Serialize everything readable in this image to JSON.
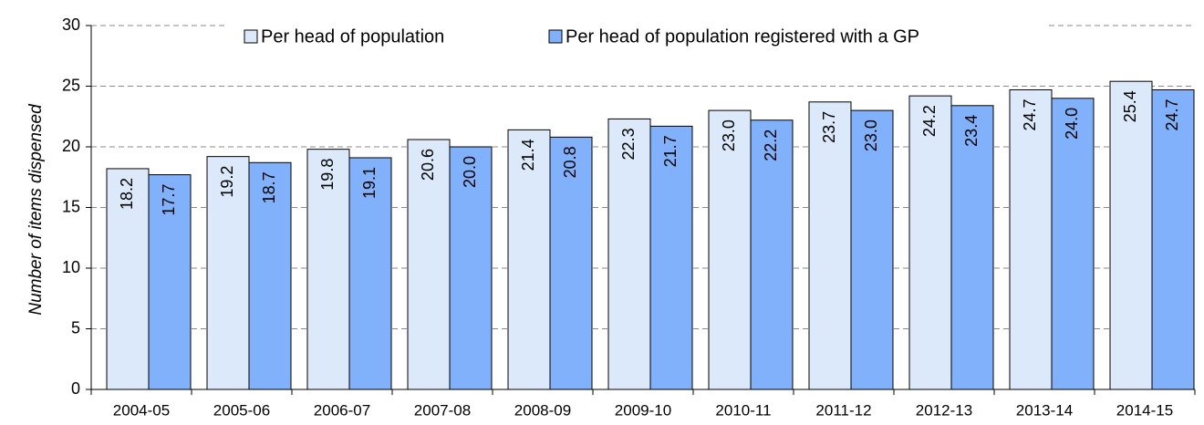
{
  "chart_data": {
    "type": "bar",
    "y_label": "Number of items dispensed",
    "categories": [
      "2004-05",
      "2005-06",
      "2006-07",
      "2007-08",
      "2008-09",
      "2009-10",
      "2010-11",
      "2011-12",
      "2012-13",
      "2013-14",
      "2014-15"
    ],
    "series": [
      {
        "name": "Per head of population",
        "color": "#dce9fb",
        "values": [
          18.2,
          19.2,
          19.8,
          20.6,
          21.4,
          22.3,
          23.0,
          23.7,
          24.2,
          24.7,
          25.4
        ],
        "value_labels": [
          "18.2",
          "19.2",
          "19.8",
          "20.6",
          "21.4",
          "22.3",
          "23.0",
          "23.7",
          "24.2",
          "24.7",
          "25.4"
        ]
      },
      {
        "name": "Per head of population registered with a GP",
        "color": "#80b1fa",
        "values": [
          17.7,
          18.7,
          19.1,
          20.0,
          20.8,
          21.7,
          22.2,
          23.0,
          23.4,
          24.0,
          24.7
        ],
        "value_labels": [
          "17.7",
          "18.7",
          "19.1",
          "20.0",
          "20.8",
          "21.7",
          "22.2",
          "23.0",
          "23.4",
          "24.0",
          "24.7"
        ]
      }
    ],
    "ylim": [
      0,
      30
    ],
    "yticks": [
      0,
      5,
      10,
      15,
      20,
      25,
      30
    ],
    "grid": true,
    "legend": "top"
  }
}
